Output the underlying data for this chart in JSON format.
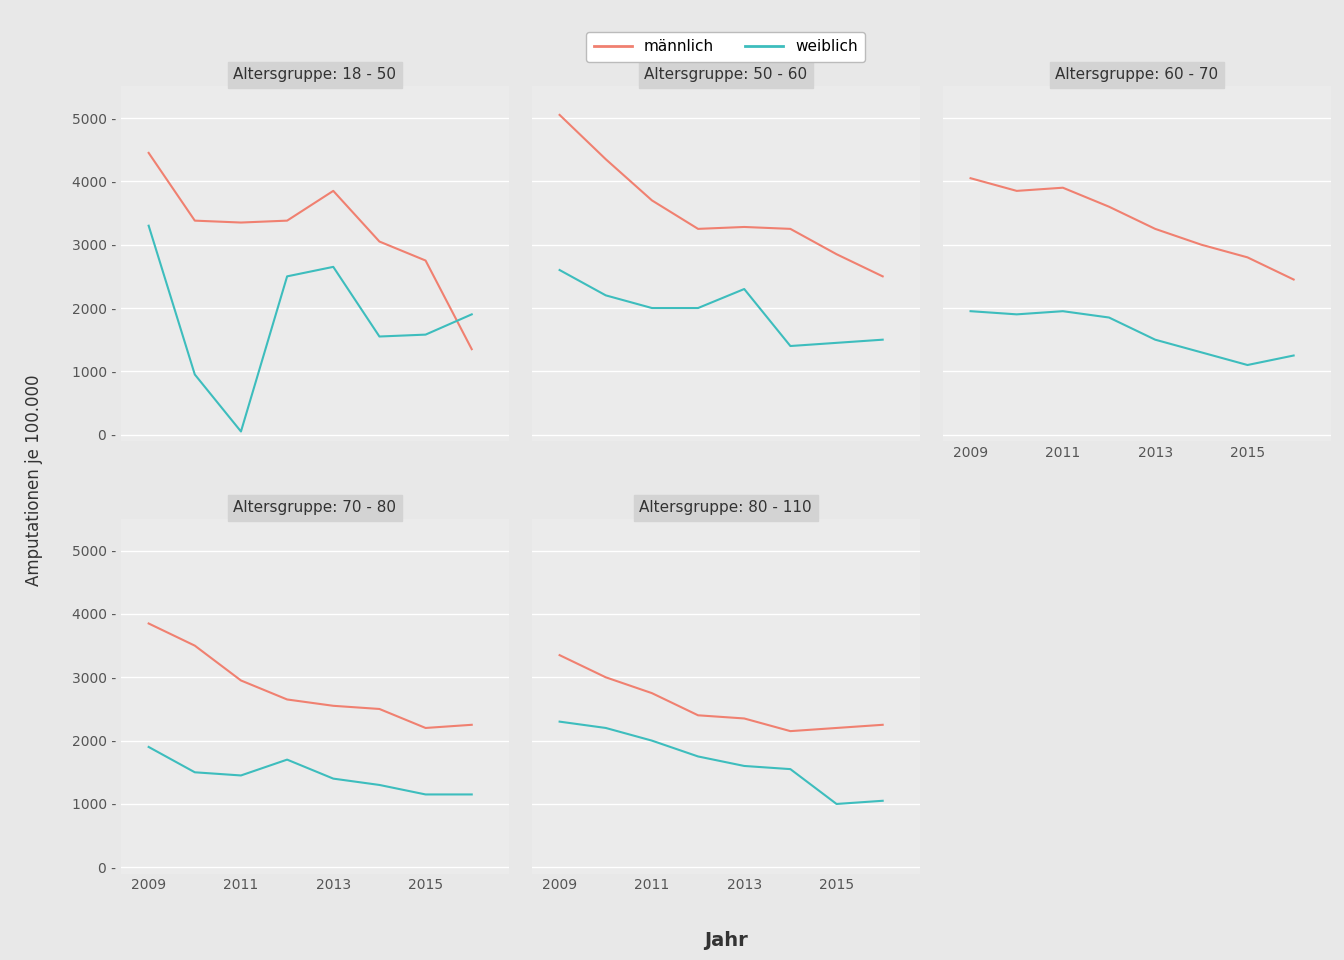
{
  "years": [
    2009,
    2010,
    2011,
    2012,
    2013,
    2014,
    2015,
    2016
  ],
  "panels": [
    {
      "label": "Altersgruppe: 18 - 50",
      "maennlich": [
        4450,
        3380,
        3350,
        3380,
        3850,
        3050,
        2750,
        1350
      ],
      "weiblich": [
        3300,
        950,
        50,
        2500,
        2650,
        1550,
        1580,
        1900
      ]
    },
    {
      "label": "Altersgruppe: 50 - 60",
      "maennlich": [
        5050,
        4350,
        3700,
        3250,
        3280,
        3250,
        2850,
        2500
      ],
      "weiblich": [
        2600,
        2200,
        2000,
        2000,
        2300,
        1400,
        1450,
        1500
      ]
    },
    {
      "label": "Altersgruppe: 60 - 70",
      "maennlich": [
        4050,
        3850,
        3900,
        3600,
        3250,
        3000,
        2800,
        2450
      ],
      "weiblich": [
        1950,
        1900,
        1950,
        1850,
        1500,
        1300,
        1100,
        1250
      ]
    },
    {
      "label": "Altersgruppe: 70 - 80",
      "maennlich": [
        3850,
        3500,
        2950,
        2650,
        2550,
        2500,
        2200,
        2250
      ],
      "weiblich": [
        1900,
        1500,
        1450,
        1700,
        1400,
        1300,
        1150,
        1150
      ]
    },
    {
      "label": "Altersgruppe: 80 - 110",
      "maennlich": [
        3350,
        3000,
        2750,
        2400,
        2350,
        2150,
        2200,
        2250
      ],
      "weiblich": [
        2300,
        2200,
        2000,
        1750,
        1600,
        1550,
        1000,
        1050
      ]
    }
  ],
  "color_maennlich": "#F08070",
  "color_weiblich": "#3DBDBD",
  "ylabel": "Amputationen je 100.000",
  "xlabel": "Jahr",
  "legend_maennlich": "männlich",
  "legend_weiblich": "weiblich",
  "panel_bg": "#EBEBEB",
  "outer_bg": "#E8E8E8",
  "grid_color": "#FFFFFF",
  "strip_bg": "#D3D3D3",
  "ylim": [
    -100,
    5500
  ],
  "yticks": [
    0,
    1000,
    2000,
    3000,
    4000,
    5000
  ],
  "ytick_labels": [
    "0",
    "1000",
    "2000",
    "3000",
    "4000",
    "5000"
  ],
  "xticks": [
    2009,
    2011,
    2013,
    2015
  ],
  "xlim": [
    2008.4,
    2016.8
  ]
}
